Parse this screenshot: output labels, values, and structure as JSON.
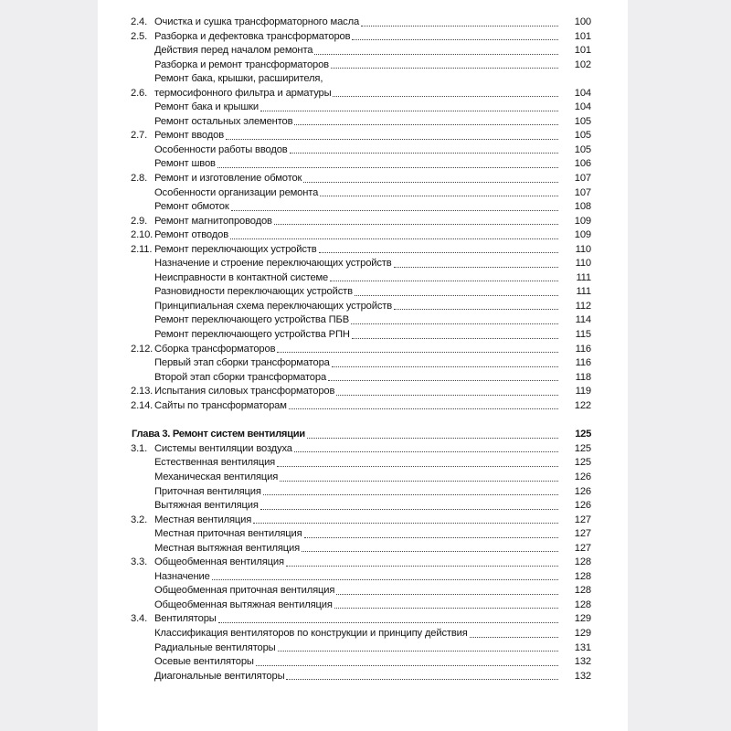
{
  "toc": [
    {
      "num": "2.4.",
      "title": "Очистка и сушка трансформаторного масла",
      "page": "100",
      "level": 1
    },
    {
      "num": "2.5.",
      "title": "Разборка и дефектовка трансформаторов",
      "page": "101",
      "level": 1
    },
    {
      "num": "",
      "title": "Действия перед началом ремонта",
      "page": "101",
      "level": 2
    },
    {
      "num": "",
      "title": "Разборка и ремонт трансформаторов",
      "page": "102",
      "level": 2
    },
    {
      "num": "2.6.",
      "title": "Ремонт бака, крышки, расширителя,\nтермосифонного фильтра и арматуры",
      "page": "104",
      "level": 1
    },
    {
      "num": "",
      "title": "Ремонт бака и крышки",
      "page": "104",
      "level": 2
    },
    {
      "num": "",
      "title": "Ремонт остальных элементов",
      "page": "105",
      "level": 2
    },
    {
      "num": "2.7.",
      "title": "Ремонт вводов",
      "page": "105",
      "level": 1
    },
    {
      "num": "",
      "title": "Особенности работы вводов",
      "page": "105",
      "level": 2
    },
    {
      "num": "",
      "title": "Ремонт швов",
      "page": "106",
      "level": 2
    },
    {
      "num": "2.8.",
      "title": "Ремонт и изготовление обмоток",
      "page": "107",
      "level": 1
    },
    {
      "num": "",
      "title": "Особенности организации ремонта",
      "page": "107",
      "level": 2
    },
    {
      "num": "",
      "title": "Ремонт обмоток",
      "page": "108",
      "level": 2
    },
    {
      "num": "2.9.",
      "title": "Ремонт магнитопроводов",
      "page": "109",
      "level": 1
    },
    {
      "num": "2.10.",
      "title": "Ремонт отводов",
      "page": "109",
      "level": 1
    },
    {
      "num": "2.11.",
      "title": "Ремонт переключающих устройств",
      "page": "110",
      "level": 1
    },
    {
      "num": "",
      "title": "Назначение и строение переключающих устройств",
      "page": "110",
      "level": 2
    },
    {
      "num": "",
      "title": "Неисправности в контактной системе",
      "page": "111",
      "level": 2
    },
    {
      "num": "",
      "title": "Разновидности переключающих устройств",
      "page": "111",
      "level": 2
    },
    {
      "num": "",
      "title": "Принципиальная схема переключающих устройств",
      "page": "112",
      "level": 2
    },
    {
      "num": "",
      "title": "Ремонт переключающего устройства ПБВ",
      "page": "114",
      "level": 2
    },
    {
      "num": "",
      "title": "Ремонт переключающего устройства РПН",
      "page": "115",
      "level": 2
    },
    {
      "num": "2.12.",
      "title": "Сборка трансформаторов",
      "page": "116",
      "level": 1
    },
    {
      "num": "",
      "title": "Первый этап сборки трансформатора",
      "page": "116",
      "level": 2
    },
    {
      "num": "",
      "title": "Второй этап сборки трансформатора",
      "page": "118",
      "level": 2
    },
    {
      "num": "2.13.",
      "title": "Испытания силовых трансформаторов",
      "page": "119",
      "level": 1
    },
    {
      "num": "2.14.",
      "title": "Сайты по трансформаторам",
      "page": "122",
      "level": 1
    },
    {
      "num": "",
      "title": "Глава 3. Ремонт систем вентиляции",
      "page": "125",
      "level": 0
    },
    {
      "num": "3.1.",
      "title": "Системы вентиляции воздуха",
      "page": "125",
      "level": 1
    },
    {
      "num": "",
      "title": "Естественная вентиляция",
      "page": "125",
      "level": 2
    },
    {
      "num": "",
      "title": "Механическая вентиляция",
      "page": "126",
      "level": 2
    },
    {
      "num": "",
      "title": "Приточная вентиляция",
      "page": "126",
      "level": 2
    },
    {
      "num": "",
      "title": "Вытяжная вентиляция",
      "page": "126",
      "level": 2
    },
    {
      "num": "3.2.",
      "title": "Местная вентиляция",
      "page": "127",
      "level": 1
    },
    {
      "num": "",
      "title": "Местная приточная вентиляция",
      "page": "127",
      "level": 2
    },
    {
      "num": "",
      "title": "Местная вытяжная вентиляция",
      "page": "127",
      "level": 2
    },
    {
      "num": "3.3.",
      "title": "Общеобменная вентиляция",
      "page": "128",
      "level": 1
    },
    {
      "num": "",
      "title": "Назначение",
      "page": "128",
      "level": 2
    },
    {
      "num": "",
      "title": "Общеобменная приточная вентиляция",
      "page": "128",
      "level": 2
    },
    {
      "num": "",
      "title": "Общеобменная вытяжная вентиляция",
      "page": "128",
      "level": 2
    },
    {
      "num": "3.4.",
      "title": "Вентиляторы",
      "page": "129",
      "level": 1
    },
    {
      "num": "",
      "title": "Классификация вентиляторов по конструкции и принципу действия",
      "page": "129",
      "level": 2
    },
    {
      "num": "",
      "title": "Радиальные вентиляторы",
      "page": "131",
      "level": 2
    },
    {
      "num": "",
      "title": "Осевые вентиляторы",
      "page": "132",
      "level": 2
    },
    {
      "num": "",
      "title": "Диагональные вентиляторы",
      "page": "132",
      "level": 2
    }
  ]
}
